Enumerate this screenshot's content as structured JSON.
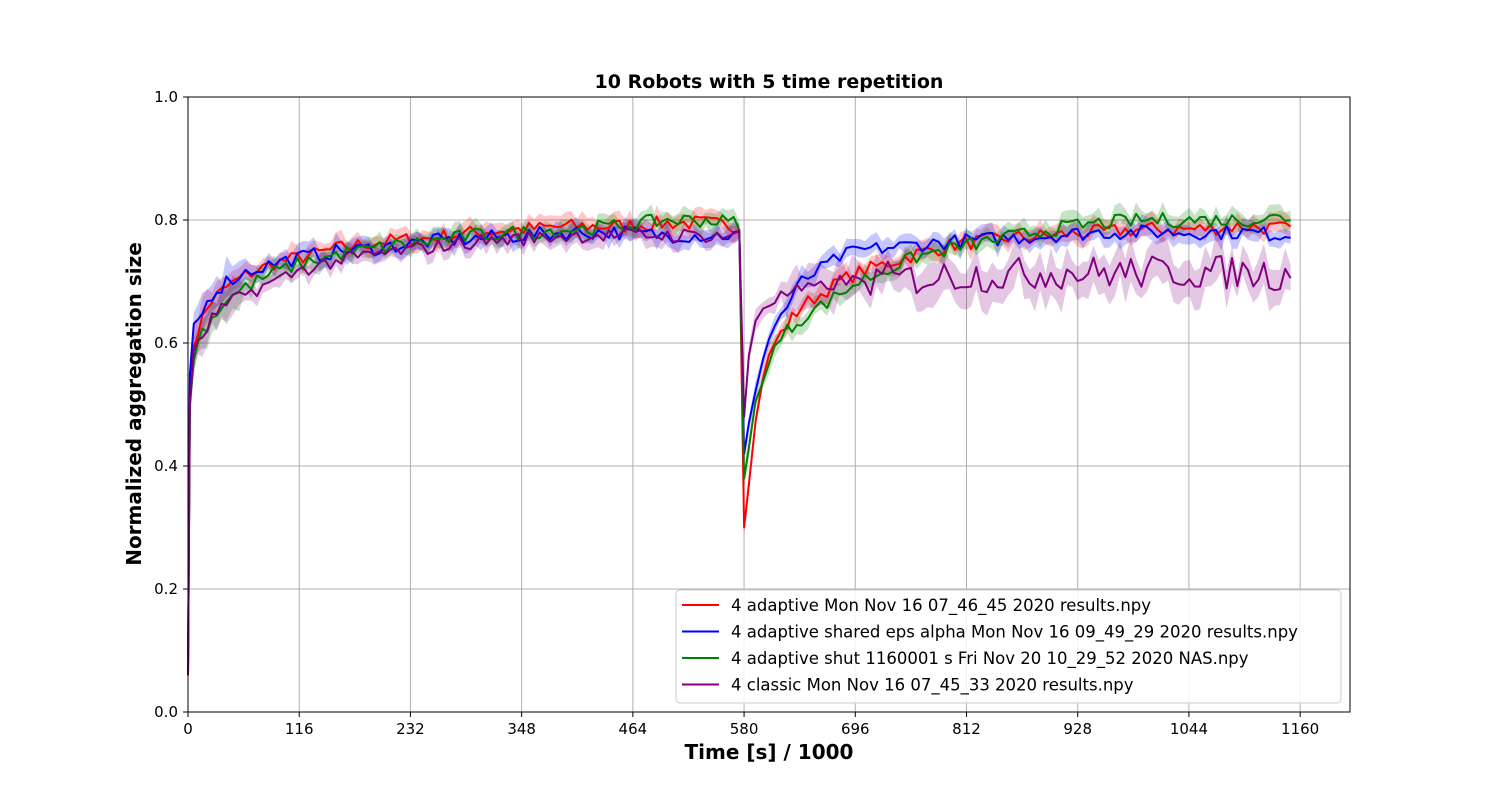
{
  "chart_data": {
    "type": "line",
    "title": "10 Robots with 5 time repetition",
    "xlabel": "Time [s] / 1000",
    "ylabel": "Normalized aggregation size",
    "xlim": [
      0,
      1212
    ],
    "ylim": [
      0.0,
      1.0
    ],
    "xticks": [
      0,
      116,
      232,
      348,
      464,
      580,
      696,
      812,
      928,
      1044,
      1160
    ],
    "xtick_labels": [
      "0",
      "116",
      "232",
      "348",
      "464",
      "580",
      "696",
      "812",
      "928",
      "1044",
      "1160"
    ],
    "yticks": [
      0.0,
      0.2,
      0.4,
      0.6,
      0.8,
      1.0
    ],
    "ytick_labels": [
      "0.0",
      "0.2",
      "0.4",
      "0.6",
      "0.8",
      "1.0"
    ],
    "grid": true,
    "legend_position": "lower right",
    "shaded_band": "variability across repetitions",
    "series": [
      {
        "name": "4 adaptive Mon Nov 16 07_46_45 2020  results.npy",
        "color": "#ff0000",
        "x": [
          0,
          2,
          6,
          15,
          25,
          40,
          60,
          90,
          120,
          160,
          200,
          250,
          300,
          350,
          400,
          450,
          500,
          540,
          575,
          580,
          585,
          592,
          600,
          612,
          625,
          640,
          660,
          680,
          700,
          730,
          760,
          800,
          850,
          900,
          950,
          1000,
          1050,
          1100,
          1150
        ],
        "y": [
          0.06,
          0.52,
          0.6,
          0.64,
          0.67,
          0.69,
          0.71,
          0.73,
          0.74,
          0.755,
          0.765,
          0.77,
          0.78,
          0.785,
          0.79,
          0.79,
          0.795,
          0.795,
          0.79,
          0.3,
          0.37,
          0.47,
          0.55,
          0.6,
          0.63,
          0.66,
          0.68,
          0.7,
          0.715,
          0.73,
          0.745,
          0.76,
          0.77,
          0.775,
          0.78,
          0.785,
          0.785,
          0.79,
          0.785
        ]
      },
      {
        "name": "4 adaptive shared eps alpha Mon Nov 16 09_49_29 2020  results.npy",
        "color": "#0000ff",
        "x": [
          0,
          2,
          6,
          15,
          25,
          40,
          60,
          90,
          120,
          160,
          200,
          250,
          300,
          350,
          400,
          450,
          500,
          540,
          575,
          580,
          585,
          592,
          600,
          612,
          625,
          640,
          660,
          680,
          700,
          730,
          760,
          800,
          850,
          900,
          950,
          1000,
          1050,
          1100,
          1150
        ],
        "y": [
          0.06,
          0.55,
          0.62,
          0.65,
          0.68,
          0.7,
          0.715,
          0.73,
          0.74,
          0.75,
          0.755,
          0.765,
          0.77,
          0.775,
          0.78,
          0.78,
          0.775,
          0.775,
          0.775,
          0.42,
          0.47,
          0.53,
          0.58,
          0.63,
          0.66,
          0.7,
          0.72,
          0.74,
          0.75,
          0.755,
          0.76,
          0.765,
          0.77,
          0.775,
          0.78,
          0.78,
          0.78,
          0.78,
          0.775
        ]
      },
      {
        "name": "4 adaptive shut 1160001 s Fri Nov 20 10_29_52 2020 NAS.npy",
        "color": "#008000",
        "x": [
          0,
          2,
          6,
          15,
          25,
          40,
          60,
          90,
          120,
          160,
          200,
          250,
          300,
          350,
          400,
          450,
          500,
          540,
          575,
          580,
          585,
          592,
          600,
          612,
          625,
          640,
          660,
          680,
          700,
          730,
          760,
          800,
          850,
          900,
          950,
          1000,
          1050,
          1100,
          1150
        ],
        "y": [
          0.06,
          0.5,
          0.58,
          0.62,
          0.64,
          0.67,
          0.69,
          0.715,
          0.73,
          0.745,
          0.755,
          0.765,
          0.775,
          0.78,
          0.785,
          0.79,
          0.8,
          0.8,
          0.795,
          0.38,
          0.43,
          0.5,
          0.55,
          0.59,
          0.62,
          0.64,
          0.66,
          0.68,
          0.7,
          0.72,
          0.74,
          0.755,
          0.77,
          0.785,
          0.795,
          0.8,
          0.8,
          0.8,
          0.805
        ]
      },
      {
        "name": "4 classic Mon Nov 16 07_45_33 2020  results.npy",
        "color": "#800080",
        "x": [
          0,
          2,
          6,
          15,
          25,
          40,
          60,
          90,
          120,
          160,
          200,
          250,
          300,
          350,
          400,
          450,
          500,
          540,
          575,
          580,
          585,
          592,
          600,
          612,
          625,
          640,
          660,
          680,
          700,
          730,
          760,
          800,
          850,
          900,
          950,
          1000,
          1050,
          1100,
          1150
        ],
        "y": [
          0.06,
          0.5,
          0.58,
          0.61,
          0.64,
          0.66,
          0.68,
          0.7,
          0.72,
          0.735,
          0.745,
          0.755,
          0.765,
          0.77,
          0.775,
          0.775,
          0.775,
          0.775,
          0.775,
          0.48,
          0.58,
          0.64,
          0.66,
          0.67,
          0.68,
          0.685,
          0.69,
          0.7,
          0.7,
          0.705,
          0.705,
          0.71,
          0.71,
          0.715,
          0.715,
          0.715,
          0.715,
          0.715,
          0.71
        ]
      }
    ]
  }
}
